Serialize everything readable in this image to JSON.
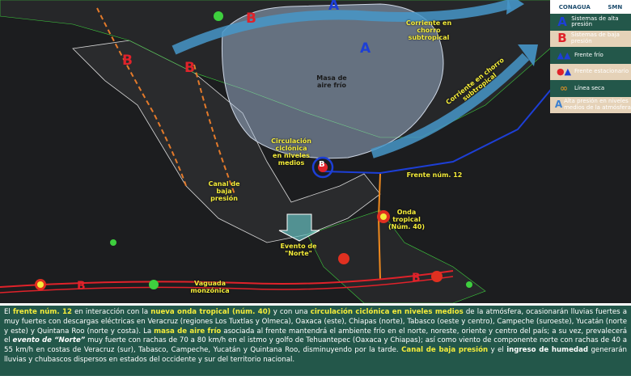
{
  "legend": {
    "logos": [
      "CONAGUA",
      "SMN"
    ],
    "items": [
      {
        "icon": "A",
        "label": "Sistemas de alta presión",
        "color": "#1d3fd6"
      },
      {
        "icon": "B",
        "label": "Sistemas de baja presión",
        "color": "#e0222a"
      },
      {
        "icon": "cold-front-icon",
        "label": "Frente frío"
      },
      {
        "icon": "stationary-front-icon",
        "label": "Frente estacionario"
      },
      {
        "icon": "dry-line-icon",
        "label": "Línea seca"
      },
      {
        "icon": "A",
        "label": "Alta presión en niveles medios de la atmósfera"
      }
    ]
  },
  "map": {
    "symbols": {
      "high1": "A",
      "high2": "A",
      "low1": "B",
      "low2": "B",
      "low3": "B",
      "low4": "B",
      "low5": "B",
      "low6": "B"
    },
    "labels": {
      "jet1": "Corriente en chorro subtropical",
      "jet2": "Corriente en chorro subtropical",
      "cold_air": "Masa de aire frío",
      "cyclonic": "Circulación ciclónica en niveles medios",
      "trough": "Canal de baja presión",
      "front": "Frente núm. 12",
      "wave": "Onda tropical (Núm. 40)",
      "norte": "Evento de \"Norte\"",
      "monsoon": "Vaguada monzónica"
    }
  },
  "description": [
    {
      "t": "El ",
      "s": ""
    },
    {
      "t": "frente núm. 12",
      "s": "hl"
    },
    {
      "t": " en interacción con la ",
      "s": ""
    },
    {
      "t": "nueva onda tropical (núm. 40)",
      "s": "hl"
    },
    {
      "t": " y con una ",
      "s": ""
    },
    {
      "t": "circulación ciclónica en niveles medios",
      "s": "hl"
    },
    {
      "t": " de la atmósfera, ocasionarán lluvias fuertes a muy fuertes con descargas eléctricas en Veracruz (regiones Los Tuxtlas y Olmeca), Oaxaca (este), Chiapas (norte), Tabasco (oeste y centro), Campeche (suroeste), Yucatán (norte y este) y Quintana Roo (norte y costa). La ",
      "s": ""
    },
    {
      "t": "masa de aire frío",
      "s": "hl"
    },
    {
      "t": " asociada al frente mantendrá el ambiente frío en el norte, noreste, oriente y centro del país; a su vez, prevalecerá el ",
      "s": ""
    },
    {
      "t": "evento de “Norte”",
      "s": "bi"
    },
    {
      "t": " muy fuerte con rachas de 70 a 80 km/h en el istmo y golfo de Tehuantepec (Oaxaca y Chiapas); así como viento de componente norte con rachas de 40 a 55 km/h en costas de Veracruz (sur), Tabasco, Campeche, Yucatán y Quintana Roo, disminuyendo por la tarde. ",
      "s": ""
    },
    {
      "t": "Canal de baja presión",
      "s": "hl"
    },
    {
      "t": " y el ",
      "s": ""
    },
    {
      "t": "ingreso de humedad",
      "s": "bw"
    },
    {
      "t": " generarán lluvias y chubascos dispersos en estados del occidente y sur del territorio nacional.",
      "s": ""
    }
  ]
}
